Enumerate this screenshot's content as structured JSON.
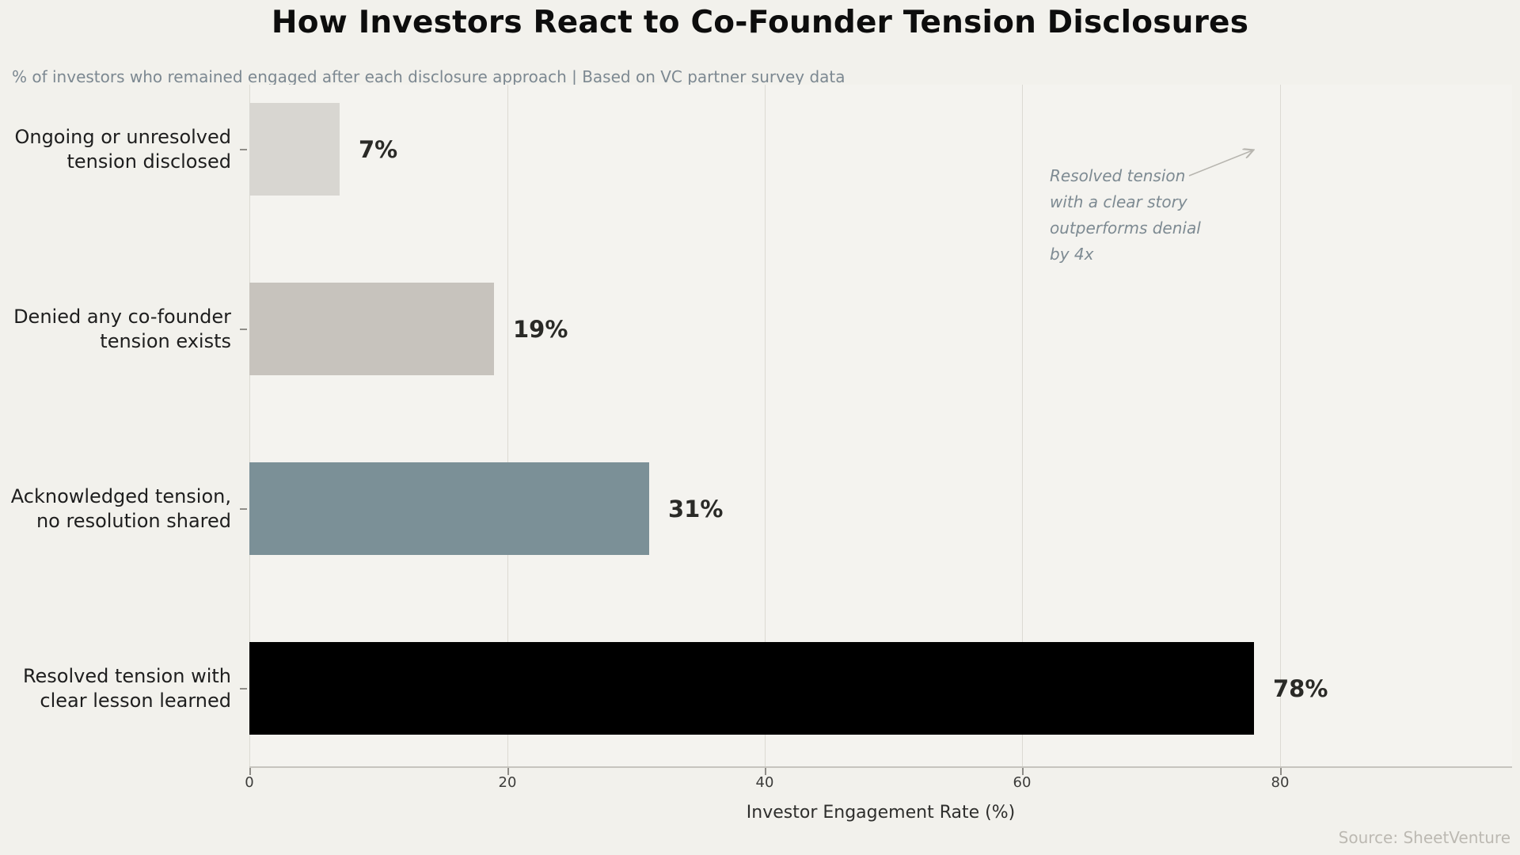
{
  "page": {
    "title": "How Investors React to Co-Founder Tension Disclosures",
    "subtitle": "% of investors who remained engaged after each disclosure approach  |  Based on VC partner survey data",
    "source": "Source: SheetVenture",
    "background": "#f2f1ec"
  },
  "chart_data": {
    "type": "bar",
    "orientation": "horizontal",
    "title": "How Investors React to Co-Founder Tension Disclosures",
    "subtitle": "% of investors who remained engaged after each disclosure approach | Based on VC partner survey data",
    "categories": [
      "Ongoing or unresolved tension disclosed",
      "Denied any co-founder tension exists",
      "Acknowledged tension, no resolution shared",
      "Resolved tension with clear lesson learned"
    ],
    "category_lines": [
      [
        "Ongoing or unresolved",
        "tension disclosed"
      ],
      [
        "Denied any co-founder",
        "tension exists"
      ],
      [
        "Acknowledged tension,",
        "no resolution shared"
      ],
      [
        "Resolved tension with",
        "clear lesson learned"
      ]
    ],
    "values": [
      7,
      19,
      31,
      78
    ],
    "value_labels": [
      "7%",
      "19%",
      "31%",
      "78%"
    ],
    "bar_colors": [
      "#d8d6d1",
      "#c7c3bd",
      "#7b9097",
      "#000000"
    ],
    "xlabel": "Investor Engagement Rate (%)",
    "ylabel": "",
    "x_ticks": [
      0,
      20,
      40,
      60,
      80
    ],
    "x_tick_labels": [
      "0",
      "20",
      "40",
      "60",
      "80"
    ],
    "xlim": [
      0,
      98
    ],
    "grid": "vertical-only",
    "legend": "none",
    "annotation": {
      "text": "Resolved tension with a clear story outperforms denial by 4x",
      "lines": [
        "Resolved tension",
        "with a clear story",
        "outperforms denial",
        "by 4x"
      ]
    },
    "colors": {
      "gridline": "#dcdad3",
      "spine": "#c6c4be",
      "tick": "#8f8d88",
      "arrow": "#b7b5af",
      "annotation_text": "#7d8a92",
      "value_label": "#2a2a27"
    }
  }
}
